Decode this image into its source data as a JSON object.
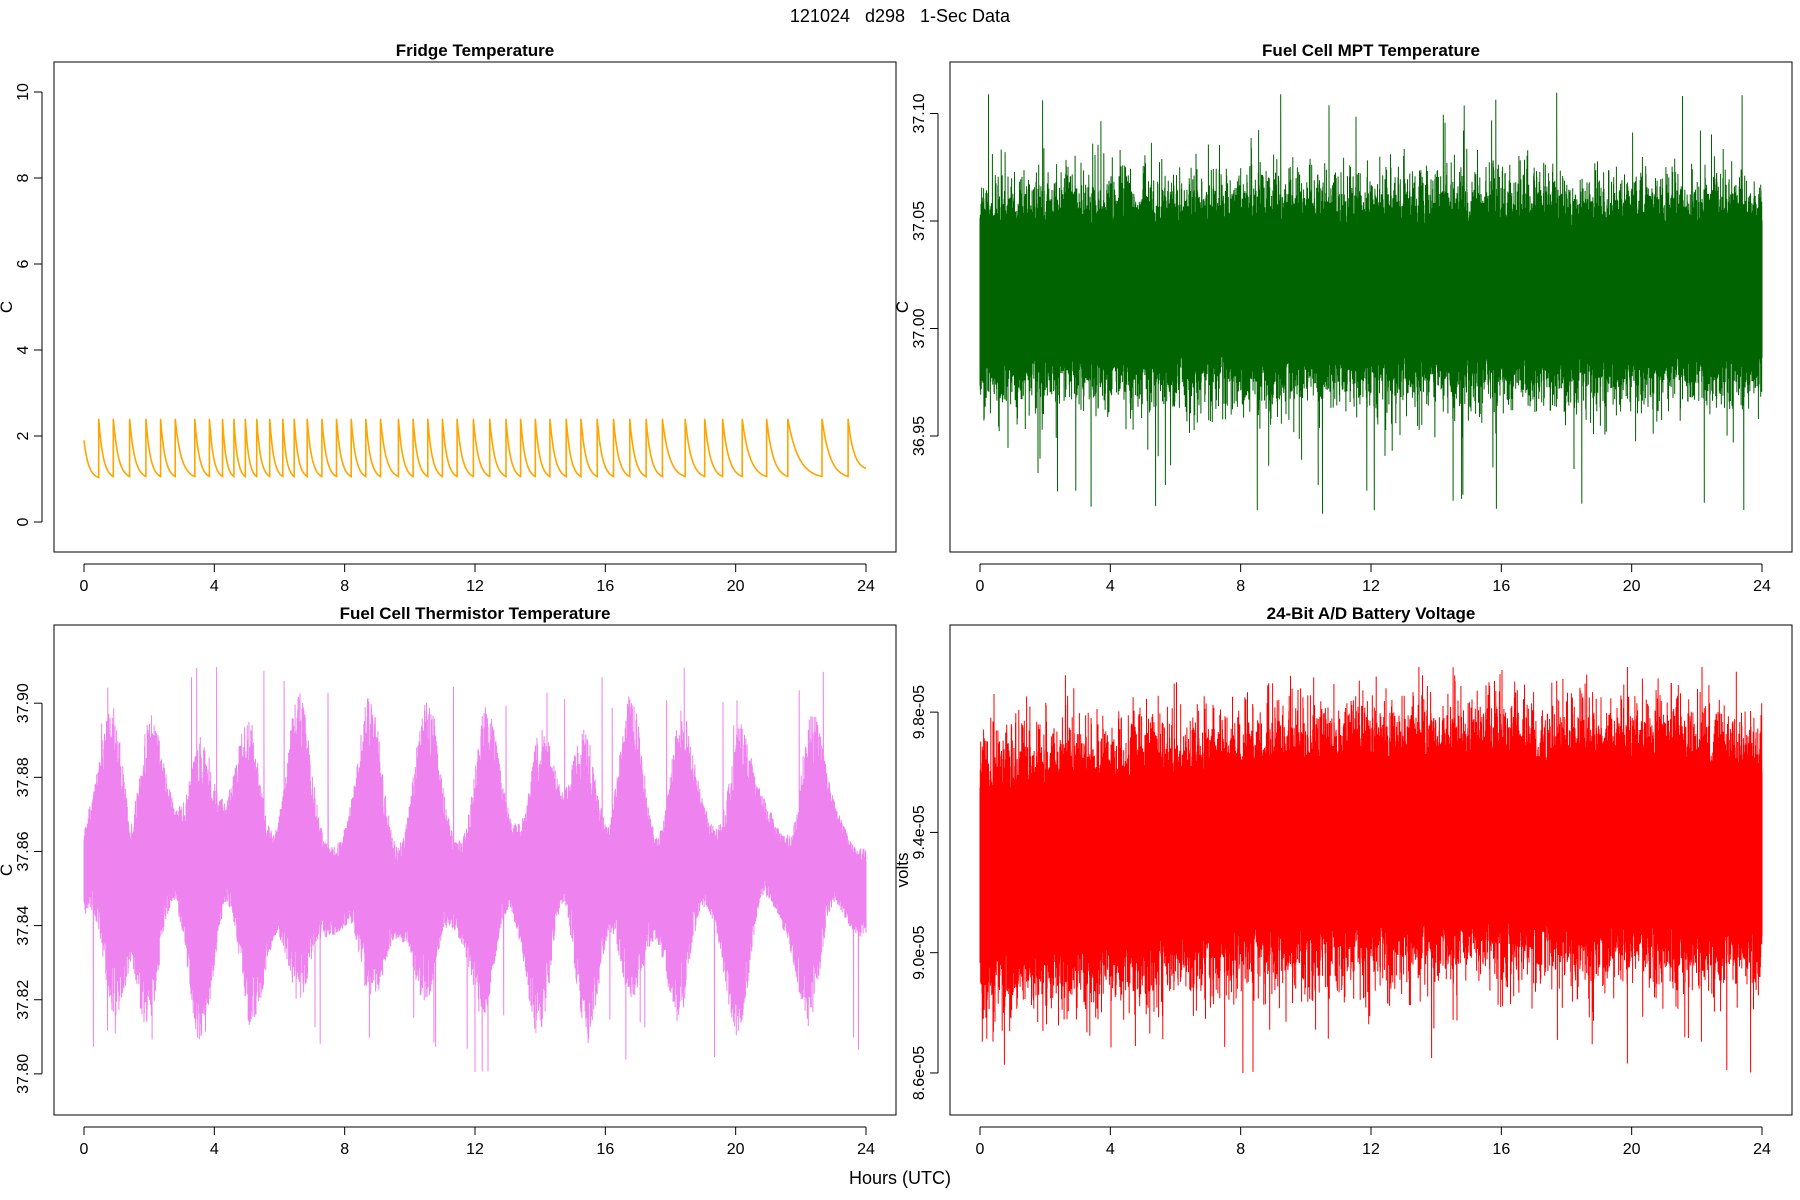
{
  "suptitle": "121024   d298   1-Sec Data",
  "xlabel": "Hours (UTC)",
  "chart_data": [
    {
      "type": "line",
      "title": "Fridge Temperature",
      "ylabel": "C",
      "color": "#FFA500",
      "xlim": [
        0,
        24
      ],
      "ylim": [
        0,
        10
      ],
      "x_ticks": [
        0,
        4,
        8,
        12,
        16,
        20,
        24
      ],
      "y_ticks": [
        0,
        2,
        4,
        6,
        8,
        10
      ],
      "x_tick_labels": [
        "0",
        "4",
        "8",
        "12",
        "16",
        "20",
        "24"
      ],
      "y_tick_labels": [
        "0",
        "2",
        "4",
        "6",
        "8",
        "10"
      ],
      "series": [
        {
          "name": "fridge",
          "pattern": "sawtooth",
          "start_value": 1.9,
          "peak": 2.4,
          "trough": 1.0,
          "end_value": 1.2,
          "peaks_at_hours": [
            0.45,
            0.9,
            1.4,
            1.9,
            2.35,
            2.8,
            3.4,
            3.85,
            4.25,
            4.6,
            4.95,
            5.3,
            5.7,
            6.1,
            6.45,
            6.85,
            7.3,
            7.75,
            8.2,
            8.65,
            9.1,
            9.65,
            10.1,
            10.55,
            11.0,
            11.45,
            11.95,
            12.45,
            12.95,
            13.4,
            13.85,
            14.3,
            14.8,
            15.25,
            15.75,
            16.25,
            16.75,
            17.25,
            17.75,
            18.45,
            19.05,
            19.6,
            20.2,
            20.95,
            21.6,
            22.65,
            23.45
          ]
        }
      ]
    },
    {
      "type": "line",
      "title": "Fuel Cell MPT Temperature",
      "ylabel": "C",
      "color": "#006400",
      "xlim": [
        0,
        24
      ],
      "ylim": [
        36.91,
        37.11
      ],
      "x_ticks": [
        0,
        4,
        8,
        12,
        16,
        20,
        24
      ],
      "y_ticks": [
        36.95,
        37.0,
        37.05,
        37.1
      ],
      "x_tick_labels": [
        "0",
        "4",
        "8",
        "12",
        "16",
        "20",
        "24"
      ],
      "y_tick_labels": [
        "36.95",
        "37.00",
        "37.05",
        "37.10"
      ],
      "series": [
        {
          "name": "mpt",
          "pattern": "noise",
          "center": 37.01,
          "band_low": 36.98,
          "band_high": 37.055,
          "extreme_min": 36.913,
          "extreme_max": 37.11
        }
      ]
    },
    {
      "type": "line",
      "title": "Fuel Cell Thermistor Temperature",
      "ylabel": "C",
      "color": "#EE82EE",
      "xlim": [
        0,
        24
      ],
      "ylim": [
        37.797,
        37.913
      ],
      "x_ticks": [
        0,
        4,
        8,
        12,
        16,
        20,
        24
      ],
      "y_ticks": [
        37.8,
        37.82,
        37.84,
        37.86,
        37.88,
        37.9
      ],
      "x_tick_labels": [
        "0",
        "4",
        "8",
        "12",
        "16",
        "20",
        "24"
      ],
      "y_tick_labels": [
        "37.80",
        "37.82",
        "37.84",
        "37.86",
        "37.88",
        "37.90"
      ],
      "series": [
        {
          "name": "thermistor",
          "pattern": "modulated-noise",
          "center": 37.855,
          "extreme_min": 37.8,
          "extreme_max": 37.91,
          "swell_peaks_hours": [
            0.9,
            2.0,
            3.6,
            5.1,
            6.6,
            8.8,
            10.5,
            12.3,
            14.0,
            15.4,
            16.8,
            18.3,
            20.1,
            22.3
          ]
        }
      ]
    },
    {
      "type": "line",
      "title": "24-Bit A/D Battery Voltage",
      "ylabel": "volts",
      "color": "#FF0000",
      "xlim": [
        0,
        24
      ],
      "ylim": [
        8.56e-05,
        9.99e-05
      ],
      "x_ticks": [
        0,
        4,
        8,
        12,
        16,
        20,
        24
      ],
      "y_ticks": [
        8.6e-05,
        9e-05,
        9.4e-05,
        9.8e-05
      ],
      "x_tick_labels": [
        "0",
        "4",
        "8",
        "12",
        "16",
        "20",
        "24"
      ],
      "y_tick_labels": [
        "8.6e-05",
        "9.0e-05",
        "9.4e-05",
        "9.8e-05"
      ],
      "series": [
        {
          "name": "battery",
          "pattern": "noise",
          "center": 9.3e-05,
          "band_low": 9e-05,
          "band_high": 9.65e-05,
          "extreme_min": 8.58e-05,
          "extreme_max": 9.95e-05
        }
      ]
    }
  ]
}
